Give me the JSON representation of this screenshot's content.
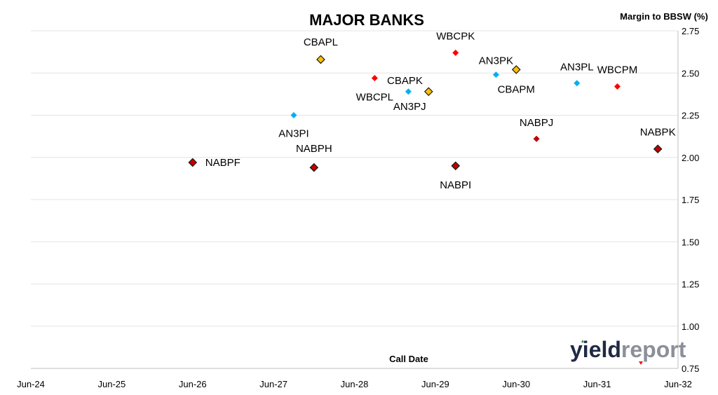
{
  "chart_data": {
    "type": "scatter",
    "title": "MAJOR BANKS",
    "xlabel": "Call Date",
    "ylabel": "Margin to BBSW (%)",
    "xlim": [
      "2024-06",
      "2032-06"
    ],
    "ylim": [
      0.75,
      2.75
    ],
    "x_ticks": [
      "Jun-24",
      "Jun-25",
      "Jun-26",
      "Jun-27",
      "Jun-28",
      "Jun-29",
      "Jun-30",
      "Jun-31",
      "Jun-32"
    ],
    "y_ticks": [
      "2.75",
      "2.50",
      "2.25",
      "2.00",
      "1.75",
      "1.50",
      "1.25",
      "1.00",
      "0.75"
    ],
    "grid": "horizontal",
    "y_axis_side": "right",
    "points": [
      {
        "label": "NABPF",
        "x": "2026-06",
        "y": 1.97,
        "color": "#c00000",
        "outline": true
      },
      {
        "label": "NABPH",
        "x": "2027-12",
        "y": 1.94,
        "color": "#c00000",
        "outline": true
      },
      {
        "label": "AN3PI",
        "x": "2027-09",
        "y": 2.25,
        "color": "#00b0f0",
        "outline": false
      },
      {
        "label": "CBAPL",
        "x": "2028-01",
        "y": 2.58,
        "color": "#ffc000",
        "outline": true
      },
      {
        "label": "WBCPL",
        "x": "2028-09",
        "y": 2.47,
        "color": "#ff0000",
        "outline": false
      },
      {
        "label": "CBAPK",
        "x": "2029-02",
        "y": 2.39,
        "color": "#00b0f0",
        "outline": false
      },
      {
        "label": "AN3PJ",
        "x": "2029-05",
        "y": 2.39,
        "color": "#ffc000",
        "outline": true
      },
      {
        "label": "WBCPK",
        "x": "2029-09",
        "y": 2.62,
        "color": "#ff0000",
        "outline": false
      },
      {
        "label": "NABPI",
        "x": "2029-09",
        "y": 1.95,
        "color": "#c00000",
        "outline": true
      },
      {
        "label": "AN3PK",
        "x": "2030-03",
        "y": 2.49,
        "color": "#00b0f0",
        "outline": false
      },
      {
        "label": "CBAPM",
        "x": "2030-06",
        "y": 2.52,
        "color": "#ffc000",
        "outline": true
      },
      {
        "label": "NABPJ",
        "x": "2030-09",
        "y": 2.11,
        "color": "#c00000",
        "outline": false
      },
      {
        "label": "AN3PL",
        "x": "2031-03",
        "y": 2.44,
        "color": "#00b0f0",
        "outline": false
      },
      {
        "label": "WBCPM",
        "x": "2031-09",
        "y": 2.42,
        "color": "#ff0000",
        "outline": false
      },
      {
        "label": "NABPK",
        "x": "2032-03",
        "y": 2.05,
        "color": "#c00000",
        "outline": true
      }
    ]
  },
  "logo": {
    "part1": "yield",
    "part2": "report"
  }
}
